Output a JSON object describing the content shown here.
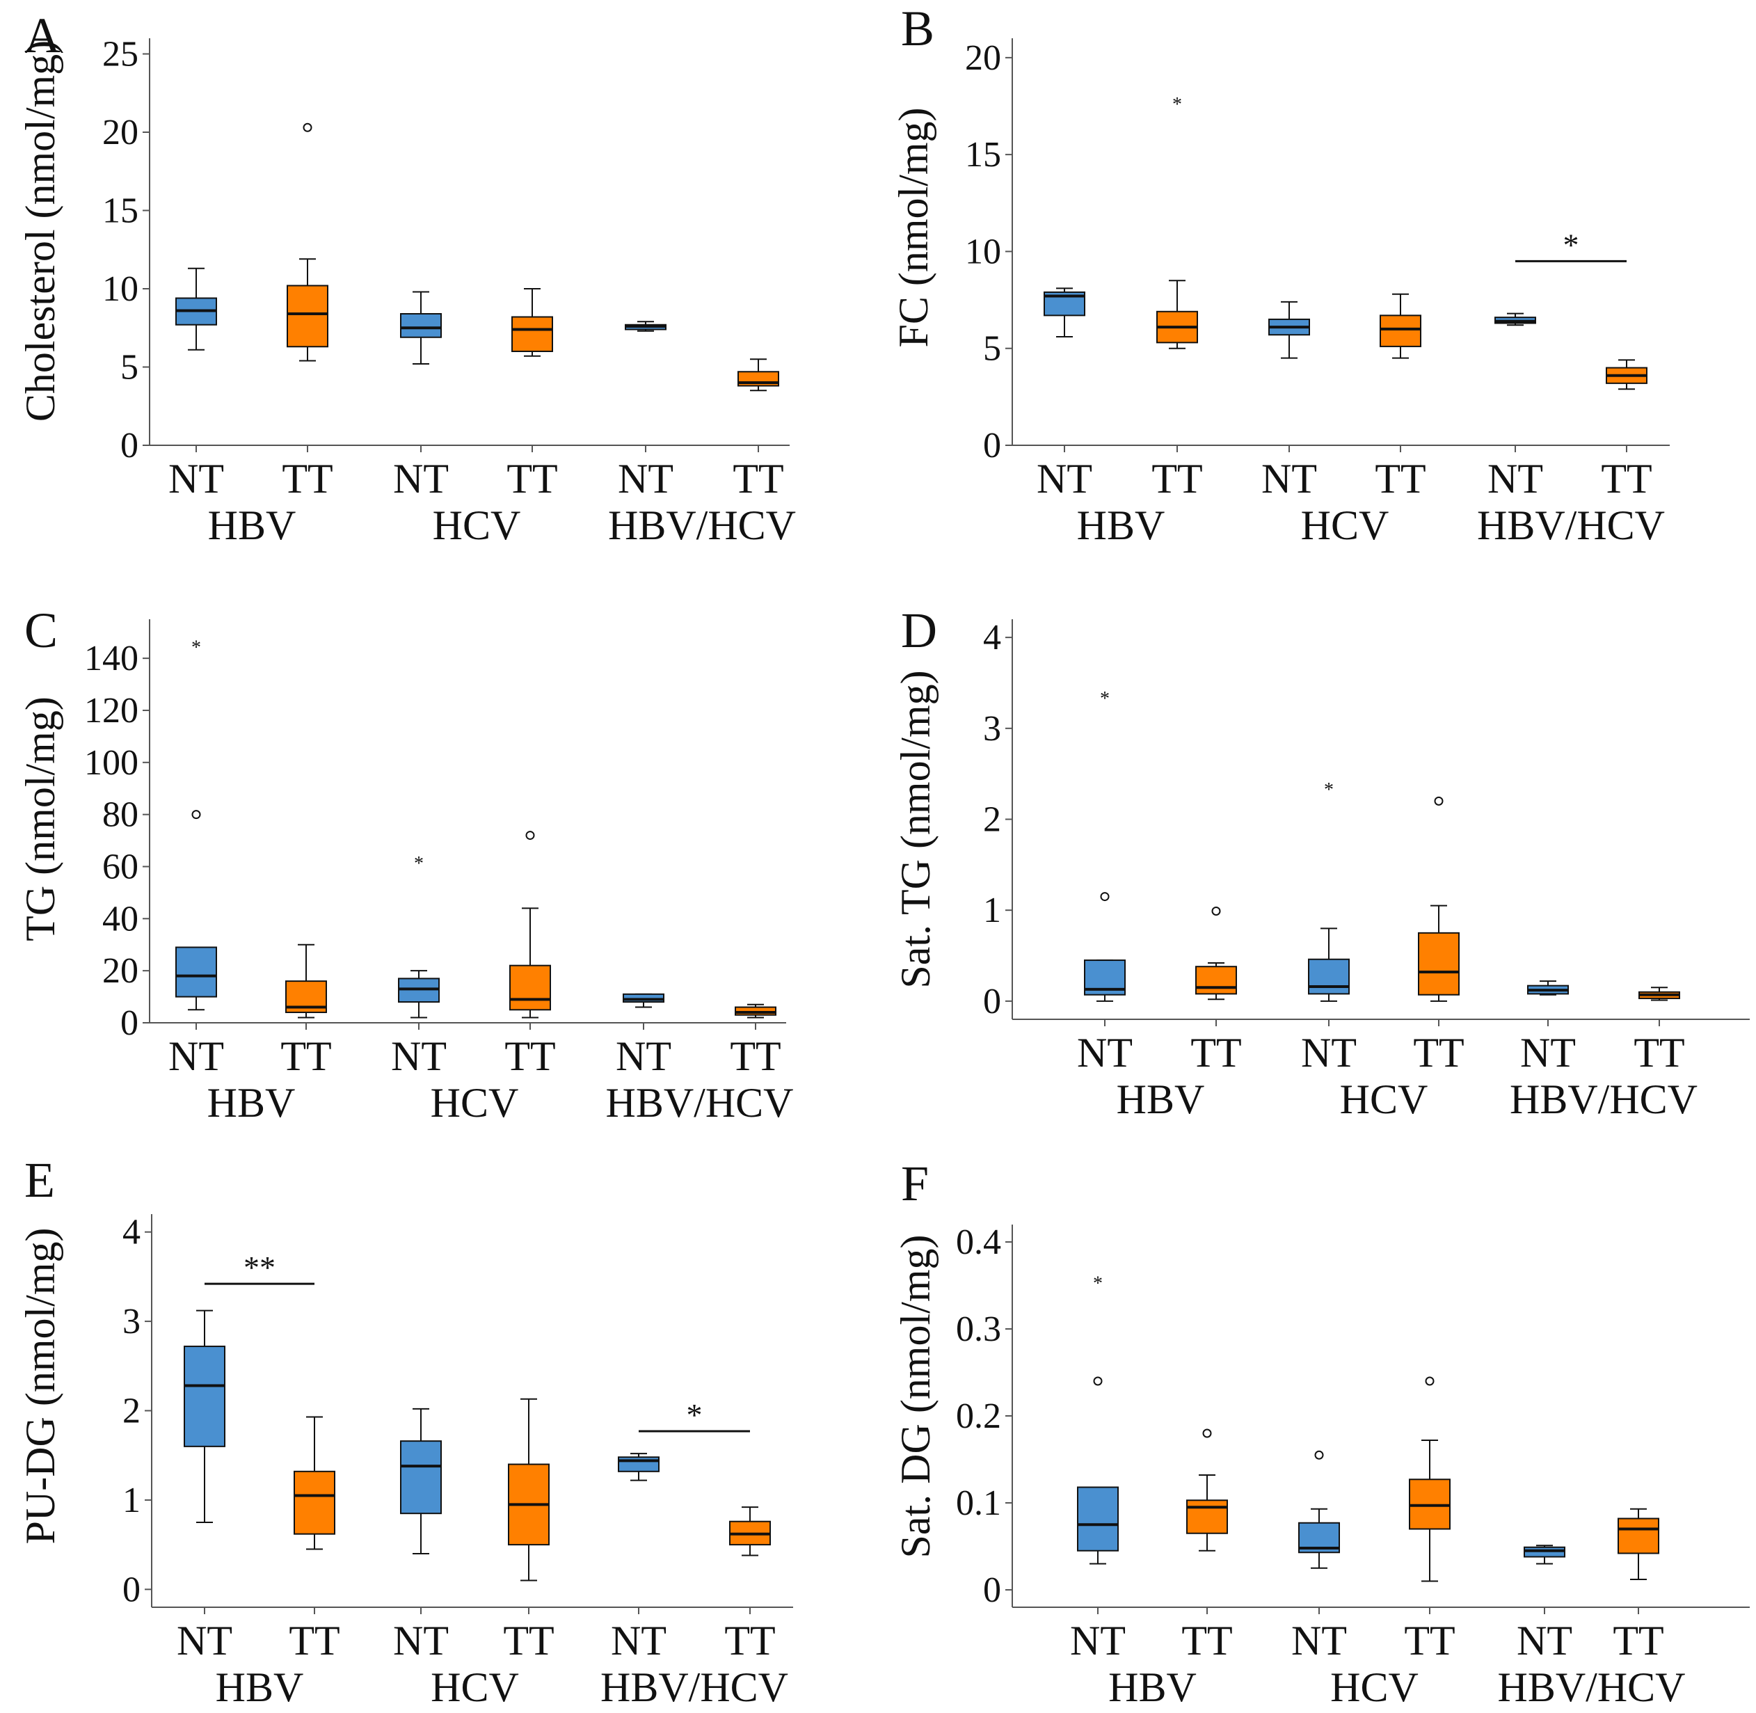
{
  "figure": {
    "colors": {
      "NT": "#4a90d0",
      "TT": "#ff8000",
      "axis": "#555555",
      "ink": "#111111"
    }
  },
  "chart_data": [
    {
      "panel": "A",
      "type": "box",
      "ylabel": "Cholesterol (nmol/mg)",
      "ylim": [
        0,
        26
      ],
      "yticks": [
        0,
        5,
        10,
        15,
        20,
        25
      ],
      "categories": [
        "NT",
        "TT",
        "NT",
        "TT",
        "NT",
        "TT"
      ],
      "groups": [
        "HBV",
        "HCV",
        "HBV/HCV"
      ],
      "boxes": [
        {
          "cat": "NT",
          "whislo": 6.1,
          "q1": 7.7,
          "med": 8.6,
          "q3": 9.4,
          "whishi": 11.3,
          "outliers": []
        },
        {
          "cat": "TT",
          "whislo": 5.4,
          "q1": 6.3,
          "med": 8.4,
          "q3": 10.2,
          "whishi": 11.9,
          "outliers": [
            {
              "v": 20.3,
              "m": "o"
            }
          ]
        },
        {
          "cat": "NT",
          "whislo": 5.2,
          "q1": 6.9,
          "med": 7.5,
          "q3": 8.4,
          "whishi": 9.8,
          "outliers": []
        },
        {
          "cat": "TT",
          "whislo": 5.7,
          "q1": 6.0,
          "med": 7.4,
          "q3": 8.2,
          "whishi": 10.0,
          "outliers": []
        },
        {
          "cat": "NT",
          "whislo": 7.3,
          "q1": 7.4,
          "med": 7.6,
          "q3": 7.7,
          "whishi": 7.9,
          "outliers": []
        },
        {
          "cat": "TT",
          "whislo": 3.5,
          "q1": 3.8,
          "med": 4.0,
          "q3": 4.7,
          "whishi": 5.5,
          "outliers": []
        }
      ],
      "significance": []
    },
    {
      "panel": "B",
      "type": "box",
      "ylabel": "FC (nmol/mg)",
      "ylim": [
        0,
        21
      ],
      "yticks": [
        0,
        5,
        10,
        15,
        20
      ],
      "categories": [
        "NT",
        "TT",
        "NT",
        "TT",
        "NT",
        "TT"
      ],
      "groups": [
        "HBV",
        "HCV",
        "HBV/HCV"
      ],
      "boxes": [
        {
          "cat": "NT",
          "whislo": 5.6,
          "q1": 6.7,
          "med": 7.7,
          "q3": 7.9,
          "whishi": 8.1,
          "outliers": []
        },
        {
          "cat": "TT",
          "whislo": 5.0,
          "q1": 5.3,
          "med": 6.1,
          "q3": 6.9,
          "whishi": 8.5,
          "outliers": [
            {
              "v": 17.7,
              "m": "*"
            }
          ]
        },
        {
          "cat": "NT",
          "whislo": 4.5,
          "q1": 5.7,
          "med": 6.1,
          "q3": 6.5,
          "whishi": 7.4,
          "outliers": []
        },
        {
          "cat": "TT",
          "whislo": 4.5,
          "q1": 5.1,
          "med": 6.0,
          "q3": 6.7,
          "whishi": 7.8,
          "outliers": []
        },
        {
          "cat": "NT",
          "whislo": 6.2,
          "q1": 6.3,
          "med": 6.4,
          "q3": 6.6,
          "whishi": 6.8,
          "outliers": []
        },
        {
          "cat": "TT",
          "whislo": 2.9,
          "q1": 3.2,
          "med": 3.6,
          "q3": 4.0,
          "whishi": 4.4,
          "outliers": []
        }
      ],
      "significance": [
        {
          "from": 4,
          "to": 5,
          "y": 9.5,
          "label": "*"
        }
      ]
    },
    {
      "panel": "C",
      "type": "box",
      "ylabel": "TG (nmol/mg)",
      "ylim": [
        0,
        155
      ],
      "yticks": [
        0,
        20,
        40,
        60,
        80,
        100,
        120,
        140
      ],
      "categories": [
        "NT",
        "TT",
        "NT",
        "TT",
        "NT",
        "TT"
      ],
      "groups": [
        "HBV",
        "HCV",
        "HBV/HCV"
      ],
      "boxes": [
        {
          "cat": "NT",
          "whislo": 5,
          "q1": 10,
          "med": 18,
          "q3": 29,
          "whishi": 29,
          "outliers": [
            {
              "v": 80,
              "m": "o"
            },
            {
              "v": 145,
              "m": "*"
            }
          ]
        },
        {
          "cat": "TT",
          "whislo": 2,
          "q1": 4,
          "med": 6,
          "q3": 16,
          "whishi": 30,
          "outliers": []
        },
        {
          "cat": "NT",
          "whislo": 2,
          "q1": 8,
          "med": 13,
          "q3": 17,
          "whishi": 20,
          "outliers": [
            {
              "v": 62,
              "m": "*"
            }
          ]
        },
        {
          "cat": "TT",
          "whislo": 2,
          "q1": 5,
          "med": 9,
          "q3": 22,
          "whishi": 44,
          "outliers": [
            {
              "v": 72,
              "m": "o"
            }
          ]
        },
        {
          "cat": "NT",
          "whislo": 6,
          "q1": 8,
          "med": 9,
          "q3": 11,
          "whishi": 11,
          "outliers": []
        },
        {
          "cat": "TT",
          "whislo": 2,
          "q1": 3,
          "med": 4,
          "q3": 6,
          "whishi": 7,
          "outliers": []
        }
      ],
      "significance": []
    },
    {
      "panel": "D",
      "type": "box",
      "ylabel": "Sat. TG (nmol/mg)",
      "ylim": [
        -0.2,
        4.2
      ],
      "yticks": [
        0,
        1,
        2,
        3,
        4
      ],
      "categories": [
        "NT",
        "TT",
        "NT",
        "TT",
        "NT",
        "TT"
      ],
      "groups": [
        "HBV",
        "HCV",
        "HBV/HCV"
      ],
      "boxes": [
        {
          "cat": "NT",
          "whislo": 0.0,
          "q1": 0.07,
          "med": 0.13,
          "q3": 0.45,
          "whishi": 0.45,
          "outliers": [
            {
              "v": 1.15,
              "m": "o"
            },
            {
              "v": 3.35,
              "m": "*"
            }
          ]
        },
        {
          "cat": "TT",
          "whislo": 0.02,
          "q1": 0.08,
          "med": 0.15,
          "q3": 0.38,
          "whishi": 0.42,
          "outliers": [
            {
              "v": 0.99,
              "m": "o"
            }
          ]
        },
        {
          "cat": "NT",
          "whislo": 0.0,
          "q1": 0.08,
          "med": 0.16,
          "q3": 0.46,
          "whishi": 0.8,
          "outliers": [
            {
              "v": 2.35,
              "m": "*"
            }
          ]
        },
        {
          "cat": "TT",
          "whislo": 0.0,
          "q1": 0.07,
          "med": 0.32,
          "q3": 0.75,
          "whishi": 1.05,
          "outliers": [
            {
              "v": 2.2,
              "m": "o"
            }
          ]
        },
        {
          "cat": "NT",
          "whislo": 0.07,
          "q1": 0.08,
          "med": 0.12,
          "q3": 0.17,
          "whishi": 0.22,
          "outliers": []
        },
        {
          "cat": "TT",
          "whislo": 0.01,
          "q1": 0.03,
          "med": 0.07,
          "q3": 0.1,
          "whishi": 0.15,
          "outliers": []
        }
      ],
      "significance": []
    },
    {
      "panel": "E",
      "type": "box",
      "ylabel": "PU-DG (nmol/mg)",
      "ylim": [
        -0.2,
        4.2
      ],
      "yticks": [
        0,
        1,
        2,
        3,
        4
      ],
      "categories": [
        "NT",
        "TT",
        "NT",
        "TT",
        "NT",
        "TT"
      ],
      "groups": [
        "HBV",
        "HCV",
        "HBV/HCV"
      ],
      "boxes": [
        {
          "cat": "NT",
          "whislo": 0.75,
          "q1": 1.6,
          "med": 2.28,
          "q3": 2.72,
          "whishi": 3.12,
          "outliers": []
        },
        {
          "cat": "TT",
          "whislo": 0.45,
          "q1": 0.62,
          "med": 1.05,
          "q3": 1.32,
          "whishi": 1.93,
          "outliers": []
        },
        {
          "cat": "NT",
          "whislo": 0.4,
          "q1": 0.85,
          "med": 1.38,
          "q3": 1.66,
          "whishi": 2.02,
          "outliers": []
        },
        {
          "cat": "TT",
          "whislo": 0.1,
          "q1": 0.5,
          "med": 0.95,
          "q3": 1.4,
          "whishi": 2.13,
          "outliers": []
        },
        {
          "cat": "NT",
          "whislo": 1.22,
          "q1": 1.32,
          "med": 1.44,
          "q3": 1.48,
          "whishi": 1.52,
          "outliers": []
        },
        {
          "cat": "TT",
          "whislo": 0.38,
          "q1": 0.5,
          "med": 0.62,
          "q3": 0.76,
          "whishi": 0.92,
          "outliers": []
        }
      ],
      "significance": [
        {
          "from": 0,
          "to": 1,
          "y": 3.42,
          "label": "**"
        },
        {
          "from": 4,
          "to": 5,
          "y": 1.77,
          "label": "*"
        }
      ]
    },
    {
      "panel": "F",
      "type": "box",
      "ylabel": "Sat. DG (nmol/mg)",
      "ylim": [
        -0.02,
        0.42
      ],
      "yticks": [
        0,
        0.1,
        0.2,
        0.3,
        0.4
      ],
      "categories": [
        "NT",
        "TT",
        "NT",
        "TT",
        "NT",
        "TT"
      ],
      "groups": [
        "HBV",
        "HCV",
        "HBV/HCV"
      ],
      "boxes": [
        {
          "cat": "NT",
          "whislo": 0.03,
          "q1": 0.045,
          "med": 0.075,
          "q3": 0.118,
          "whishi": 0.118,
          "outliers": [
            {
              "v": 0.24,
              "m": "o"
            },
            {
              "v": 0.355,
              "m": "*"
            }
          ]
        },
        {
          "cat": "TT",
          "whislo": 0.045,
          "q1": 0.065,
          "med": 0.095,
          "q3": 0.103,
          "whishi": 0.132,
          "outliers": [
            {
              "v": 0.18,
              "m": "o"
            }
          ]
        },
        {
          "cat": "NT",
          "whislo": 0.025,
          "q1": 0.043,
          "med": 0.048,
          "q3": 0.077,
          "whishi": 0.093,
          "outliers": [
            {
              "v": 0.155,
              "m": "o"
            }
          ]
        },
        {
          "cat": "TT",
          "whislo": 0.01,
          "q1": 0.07,
          "med": 0.097,
          "q3": 0.127,
          "whishi": 0.172,
          "outliers": [
            {
              "v": 0.24,
              "m": "o"
            }
          ]
        },
        {
          "cat": "NT",
          "whislo": 0.03,
          "q1": 0.038,
          "med": 0.045,
          "q3": 0.049,
          "whishi": 0.051,
          "outliers": []
        },
        {
          "cat": "TT",
          "whislo": 0.012,
          "q1": 0.042,
          "med": 0.07,
          "q3": 0.082,
          "whishi": 0.093,
          "outliers": []
        }
      ],
      "significance": []
    }
  ]
}
